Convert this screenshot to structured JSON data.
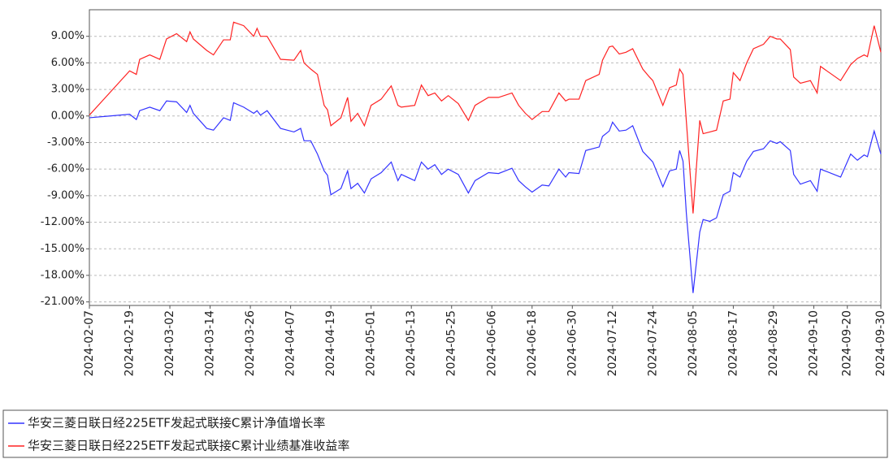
{
  "chart_data": {
    "type": "line",
    "x": [
      "2024-02-07",
      "2024-02-19",
      "2024-02-21",
      "2024-02-22",
      "2024-02-25",
      "2024-02-28",
      "2024-03-01",
      "2024-03-04",
      "2024-03-07",
      "2024-03-08",
      "2024-03-09",
      "2024-03-13",
      "2024-03-15",
      "2024-03-18",
      "2024-03-20",
      "2024-03-21",
      "2024-03-24",
      "2024-03-27",
      "2024-03-28",
      "2024-03-29",
      "2024-03-31",
      "2024-04-04",
      "2024-04-08",
      "2024-04-10",
      "2024-04-11",
      "2024-04-13",
      "2024-04-15",
      "2024-04-17",
      "2024-04-18",
      "2024-04-19",
      "2024-04-22",
      "2024-04-24",
      "2024-04-25",
      "2024-04-27",
      "2024-04-29",
      "2024-05-01",
      "2024-05-04",
      "2024-05-07",
      "2024-05-09",
      "2024-05-10",
      "2024-05-14",
      "2024-05-16",
      "2024-05-18",
      "2024-05-20",
      "2024-05-22",
      "2024-05-24",
      "2024-05-27",
      "2024-05-30",
      "2024-06-01",
      "2024-06-05",
      "2024-06-08",
      "2024-06-12",
      "2024-06-14",
      "2024-06-16",
      "2024-06-18",
      "2024-06-21",
      "2024-06-23",
      "2024-06-26",
      "2024-06-28",
      "2024-06-29",
      "2024-07-02",
      "2024-07-04",
      "2024-07-08",
      "2024-07-09",
      "2024-07-11",
      "2024-07-12",
      "2024-07-14",
      "2024-07-16",
      "2024-07-18",
      "2024-07-21",
      "2024-07-23",
      "2024-07-24",
      "2024-07-27",
      "2024-07-29",
      "2024-07-31",
      "2024-08-01",
      "2024-08-02",
      "2024-08-03",
      "2024-08-05",
      "2024-08-07",
      "2024-08-08",
      "2024-08-10",
      "2024-08-12",
      "2024-08-14",
      "2024-08-16",
      "2024-08-17",
      "2024-08-19",
      "2024-08-21",
      "2024-08-23",
      "2024-08-26",
      "2024-08-28",
      "2024-08-30",
      "2024-08-31",
      "2024-09-03",
      "2024-09-04",
      "2024-09-06",
      "2024-09-09",
      "2024-09-11",
      "2024-09-12",
      "2024-09-18",
      "2024-09-21",
      "2024-09-23",
      "2024-09-25",
      "2024-09-26",
      "2024-09-28",
      "2024-09-30"
    ],
    "series": [
      {
        "name": "华安三菱日联日经225ETF发起式联接C累计净值增长率",
        "color": "#3333ff",
        "values": [
          -0.2,
          0.2,
          -0.4,
          0.6,
          1.0,
          0.6,
          1.7,
          1.6,
          0.4,
          1.2,
          0.3,
          -1.4,
          -1.6,
          -0.2,
          -0.5,
          1.5,
          1.0,
          0.3,
          0.6,
          0.1,
          0.6,
          -1.4,
          -1.8,
          -1.4,
          -2.8,
          -2.8,
          -4.3,
          -6.2,
          -6.7,
          -8.9,
          -8.2,
          -6.2,
          -8.2,
          -7.6,
          -8.7,
          -7.1,
          -6.4,
          -5.2,
          -7.3,
          -6.6,
          -7.3,
          -5.2,
          -6.0,
          -5.5,
          -6.6,
          -6.0,
          -6.6,
          -8.7,
          -7.3,
          -6.4,
          -6.5,
          -5.9,
          -7.3,
          -8.0,
          -8.6,
          -7.8,
          -7.9,
          -6.0,
          -6.9,
          -6.4,
          -6.5,
          -3.9,
          -3.5,
          -2.3,
          -1.7,
          -0.7,
          -1.7,
          -1.6,
          -1.1,
          -4.0,
          -4.8,
          -5.2,
          -8.0,
          -6.2,
          -6.0,
          -3.9,
          -5.1,
          -11.0,
          -20.0,
          -13.1,
          -11.7,
          -11.9,
          -11.5,
          -8.9,
          -8.5,
          -6.4,
          -6.9,
          -5.1,
          -4.0,
          -3.7,
          -2.8,
          -3.1,
          -2.9,
          -3.9,
          -6.6,
          -7.7,
          -7.3,
          -8.5,
          -6.0,
          -6.9,
          -4.3,
          -5.0,
          -4.4,
          -4.6,
          -1.7,
          -4.3
        ]
      },
      {
        "name": "华安三菱日联日经225ETF发起式联接C累计业绩基准收益率",
        "color": "#ff2222",
        "values": [
          0.1,
          5.1,
          4.7,
          6.4,
          6.9,
          6.4,
          8.7,
          9.3,
          8.4,
          9.5,
          8.7,
          7.4,
          6.9,
          8.6,
          8.6,
          10.6,
          10.2,
          9.0,
          9.9,
          9.0,
          9.0,
          6.4,
          6.3,
          7.4,
          6.0,
          5.3,
          4.7,
          1.2,
          0.7,
          -1.1,
          -0.2,
          2.1,
          -0.6,
          0.3,
          -1.1,
          1.2,
          1.9,
          3.4,
          1.2,
          1.0,
          1.2,
          3.5,
          2.3,
          2.6,
          1.7,
          2.3,
          1.4,
          -0.5,
          1.2,
          2.1,
          2.1,
          2.6,
          1.2,
          0.3,
          -0.4,
          0.5,
          0.5,
          2.6,
          1.7,
          1.9,
          1.9,
          4.0,
          4.7,
          6.3,
          7.8,
          7.9,
          7.0,
          7.2,
          7.6,
          5.3,
          4.4,
          4.0,
          1.2,
          3.2,
          3.5,
          5.3,
          4.7,
          -0.6,
          -11.0,
          -0.5,
          -2.0,
          -1.8,
          -1.6,
          1.7,
          1.9,
          4.9,
          4.0,
          6.0,
          7.6,
          8.1,
          9.0,
          8.7,
          8.7,
          7.5,
          4.4,
          3.7,
          4.0,
          2.6,
          5.6,
          4.0,
          5.8,
          6.5,
          6.9,
          6.7,
          10.2,
          7.2
        ]
      }
    ],
    "xlim": [
      "2024-02-07",
      "2024-09-30"
    ],
    "xticks": [
      "2024-02-07",
      "2024-02-19",
      "2024-03-02",
      "2024-03-14",
      "2024-03-26",
      "2024-04-07",
      "2024-04-19",
      "2024-05-01",
      "2024-05-13",
      "2024-05-25",
      "2024-06-06",
      "2024-06-18",
      "2024-06-30",
      "2024-07-12",
      "2024-07-24",
      "2024-08-05",
      "2024-08-17",
      "2024-08-29",
      "2024-09-10",
      "2024-09-20",
      "2024-09-30"
    ],
    "ylim": [
      -21.4,
      12
    ],
    "yticks": [
      {
        "value": 9,
        "label": "9.00%"
      },
      {
        "value": 6,
        "label": "6.00%"
      },
      {
        "value": 3,
        "label": "3.00%"
      },
      {
        "value": 0,
        "label": "0.00%"
      },
      {
        "value": -3,
        "label": "-3.00%"
      },
      {
        "value": -6,
        "label": "-6.00%"
      },
      {
        "value": -9,
        "label": "-9.00%"
      },
      {
        "value": -12,
        "label": "-12.00%"
      },
      {
        "value": -15,
        "label": "-15.00%"
      },
      {
        "value": -18,
        "label": "-18.00%"
      },
      {
        "value": -21,
        "label": "-21.00%"
      }
    ],
    "grid": true
  }
}
